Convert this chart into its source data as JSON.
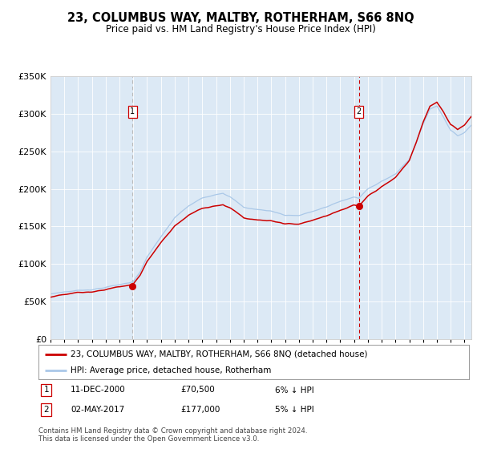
{
  "title": "23, COLUMBUS WAY, MALTBY, ROTHERHAM, S66 8NQ",
  "subtitle": "Price paid vs. HM Land Registry's House Price Index (HPI)",
  "legend_entry1": "23, COLUMBUS WAY, MALTBY, ROTHERHAM, S66 8NQ (detached house)",
  "legend_entry2": "HPI: Average price, detached house, Rotherham",
  "annotation1_date": "11-DEC-2000",
  "annotation1_price": "£70,500",
  "annotation1_hpi": "6% ↓ HPI",
  "annotation2_date": "02-MAY-2017",
  "annotation2_price": "£177,000",
  "annotation2_hpi": "5% ↓ HPI",
  "footnote1": "Contains HM Land Registry data © Crown copyright and database right 2024.",
  "footnote2": "This data is licensed under the Open Government Licence v3.0.",
  "sale1_year": 2000.94,
  "sale1_price": 70500,
  "sale2_year": 2017.34,
  "sale2_price": 177000,
  "hpi_color": "#aac8e8",
  "price_color": "#cc0000",
  "bg_color": "#dce9f5",
  "plot_bg": "#ffffff",
  "ylim_max": 350000,
  "xlim_start": 1995.0,
  "xlim_end": 2025.5
}
